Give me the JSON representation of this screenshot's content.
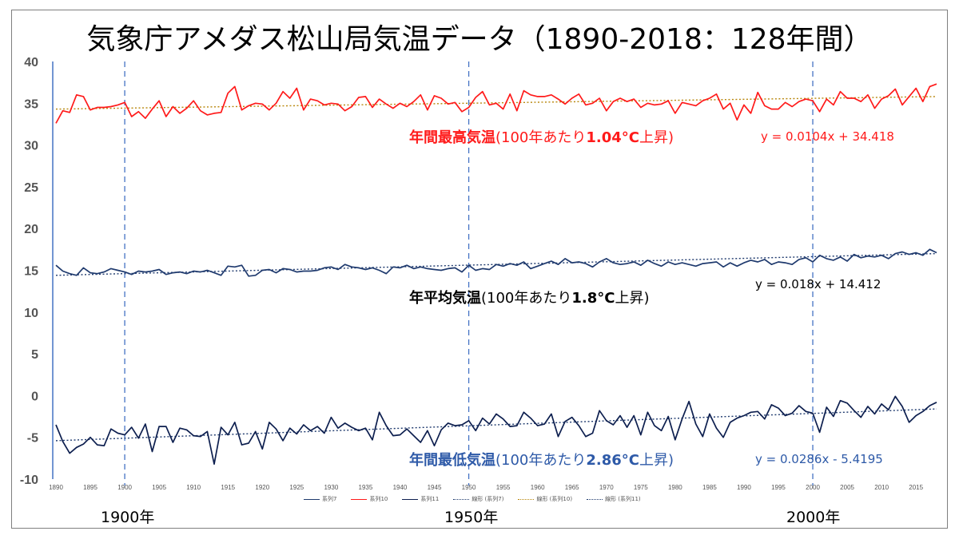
{
  "title": "気象庁アメダス松山局気温データ（1890-2018：128年間）",
  "annotations": {
    "max": {
      "prefix": "年間最高気温",
      "mid": "(100年あたり",
      "bold": "1.04°C",
      "suffix": "上昇)",
      "color": "#ff1a1a"
    },
    "avg": {
      "prefix": "年平均気温",
      "mid": "(100年あたり",
      "bold": "1.8°C",
      "suffix": "上昇)",
      "color": "#000000"
    },
    "min": {
      "prefix": "年間最低気温",
      "mid": "(100年あたり",
      "bold": "2.86°C",
      "suffix": "上昇)",
      "color": "#2e5aa8"
    }
  },
  "equations": {
    "max": "y = 0.0104x + 34.418",
    "avg": "y = 0.018x + 14.412",
    "min": "y = 0.0286x - 5.4195"
  },
  "era_labels": [
    "1900年",
    "1950年",
    "2000年"
  ],
  "legend": [
    {
      "label": "系列7",
      "color": "#1f3a6e",
      "style": "solid"
    },
    {
      "label": "系列10",
      "color": "#ff1a1a",
      "style": "solid"
    },
    {
      "label": "系列11",
      "color": "#0d1f4f",
      "style": "solid"
    },
    {
      "label": "線形 (系列7)",
      "color": "#1f3a6e",
      "style": "dotted"
    },
    {
      "label": "線形 (系列10)",
      "color": "#b8860b",
      "style": "dotted"
    },
    {
      "label": "線形 (系列11)",
      "color": "#1f3a6e",
      "style": "dotted"
    }
  ],
  "chart_data": {
    "type": "line",
    "x_start": 1890,
    "x_end": 2018,
    "ylim": [
      -10,
      40
    ],
    "y_ticks": [
      40,
      35,
      30,
      25,
      20,
      15,
      10,
      5,
      0,
      -5,
      -10
    ],
    "x_ticks": [
      1890,
      1895,
      1900,
      1905,
      1910,
      1915,
      1920,
      1925,
      1930,
      1935,
      1940,
      1945,
      1950,
      1955,
      1960,
      1965,
      1970,
      1975,
      1980,
      1985,
      1990,
      1995,
      2000,
      2005,
      2010,
      2015
    ],
    "vlines": [
      1900,
      1950,
      2000
    ],
    "series": [
      {
        "name": "系列10",
        "color": "#ff1a1a",
        "values": [
          32.6,
          34.1,
          33.9,
          36.0,
          35.8,
          34.2,
          34.5,
          34.5,
          34.6,
          34.8,
          35.1,
          33.4,
          34.0,
          33.2,
          34.3,
          35.3,
          33.4,
          34.6,
          33.8,
          34.4,
          35.3,
          34.1,
          33.6,
          33.8,
          33.9,
          36.2,
          37.0,
          34.2,
          34.7,
          35.0,
          34.9,
          34.2,
          35.0,
          36.4,
          35.6,
          36.8,
          34.2,
          35.5,
          35.3,
          34.8,
          35.0,
          34.9,
          34.1,
          34.6,
          35.7,
          35.8,
          34.5,
          35.5,
          34.9,
          34.4,
          35.0,
          34.6,
          35.2,
          36.0,
          34.2,
          35.9,
          35.6,
          34.9,
          35.1,
          34.0,
          34.5,
          35.7,
          36.4,
          34.8,
          35.0,
          34.3,
          36.1,
          34.1,
          36.5,
          36.0,
          35.8,
          35.8,
          36.0,
          35.5,
          34.9,
          35.6,
          36.1,
          34.8,
          35.0,
          35.6,
          34.1,
          35.2,
          35.6,
          35.2,
          35.5,
          34.5,
          35.0,
          34.8,
          34.9,
          35.3,
          33.8,
          35.1,
          34.9,
          34.7,
          35.3,
          35.6,
          36.1,
          34.3,
          35.0,
          33.0,
          34.8,
          33.8,
          36.3,
          34.7,
          34.3,
          34.3,
          35.1,
          34.6,
          35.2,
          35.5,
          35.3,
          34.0,
          35.5,
          34.8,
          36.4,
          35.6,
          35.6,
          35.2,
          36.0,
          34.4,
          35.5,
          35.9,
          36.7,
          34.8,
          35.8,
          36.8,
          35.2,
          37.0,
          37.3
        ]
      },
      {
        "name": "系列7",
        "color": "#1f3a6e",
        "values": [
          15.6,
          14.9,
          14.6,
          14.4,
          15.3,
          14.7,
          14.6,
          14.8,
          15.2,
          15.0,
          14.8,
          14.5,
          14.9,
          14.8,
          14.9,
          15.1,
          14.5,
          14.7,
          14.8,
          14.6,
          14.9,
          14.8,
          15.0,
          14.7,
          14.4,
          15.5,
          15.4,
          15.6,
          14.3,
          14.4,
          15.0,
          15.1,
          14.7,
          15.2,
          15.1,
          14.8,
          14.9,
          14.9,
          15.0,
          15.3,
          15.4,
          15.1,
          15.7,
          15.4,
          15.3,
          15.1,
          15.3,
          15.0,
          14.6,
          15.4,
          15.3,
          15.6,
          15.2,
          15.4,
          15.2,
          15.1,
          15.0,
          15.2,
          15.3,
          14.8,
          15.6,
          15.0,
          15.2,
          15.1,
          15.7,
          15.5,
          15.8,
          15.6,
          16.0,
          15.2,
          15.5,
          15.8,
          16.1,
          15.7,
          16.4,
          15.9,
          16.0,
          15.8,
          15.4,
          16.0,
          16.4,
          15.9,
          15.7,
          15.8,
          16.0,
          15.6,
          16.2,
          15.8,
          15.5,
          16.0,
          15.7,
          15.9,
          15.7,
          15.5,
          15.8,
          15.9,
          16.0,
          15.4,
          15.9,
          15.5,
          15.9,
          16.2,
          16.0,
          16.3,
          15.7,
          16.0,
          15.9,
          15.7,
          16.3,
          16.5,
          16.0,
          16.8,
          16.4,
          16.2,
          16.6,
          16.1,
          16.9,
          16.5,
          16.7,
          16.6,
          16.8,
          16.4,
          17.0,
          17.2,
          16.9,
          17.1,
          16.8,
          17.5,
          17.1
        ]
      },
      {
        "name": "系列11",
        "color": "#0d1f4f",
        "values": [
          -3.5,
          -5.5,
          -6.9,
          -6.2,
          -5.8,
          -5.0,
          -5.9,
          -6.0,
          -4.0,
          -4.5,
          -4.7,
          -3.8,
          -5.1,
          -3.4,
          -6.7,
          -3.7,
          -3.7,
          -5.6,
          -3.9,
          -4.1,
          -4.8,
          -4.9,
          -4.3,
          -8.2,
          -3.8,
          -4.7,
          -3.2,
          -5.9,
          -5.7,
          -4.3,
          -6.4,
          -3.2,
          -4.0,
          -5.4,
          -3.9,
          -4.6,
          -3.5,
          -4.2,
          -3.7,
          -4.5,
          -2.6,
          -3.9,
          -3.3,
          -3.8,
          -4.2,
          -3.9,
          -5.3,
          -2.0,
          -3.6,
          -4.8,
          -4.7,
          -4.0,
          -4.8,
          -5.6,
          -4.2,
          -6.0,
          -4.1,
          -3.3,
          -3.6,
          -3.5,
          -3.0,
          -4.2,
          -2.7,
          -3.4,
          -2.2,
          -2.8,
          -3.7,
          -3.6,
          -2.0,
          -2.7,
          -3.6,
          -3.4,
          -2.2,
          -4.9,
          -3.1,
          -2.6,
          -3.6,
          -4.9,
          -4.5,
          -1.8,
          -3.0,
          -3.5,
          -2.4,
          -3.8,
          -2.4,
          -4.7,
          -2.0,
          -3.6,
          -4.2,
          -2.5,
          -5.3,
          -2.8,
          -0.7,
          -3.4,
          -4.9,
          -2.2,
          -3.9,
          -5.0,
          -3.2,
          -2.7,
          -2.4,
          -2.0,
          -1.9,
          -2.8,
          -1.1,
          -1.5,
          -2.4,
          -2.1,
          -1.2,
          -1.9,
          -2.1,
          -4.4,
          -1.4,
          -2.5,
          -0.6,
          -0.9,
          -1.8,
          -2.6,
          -1.3,
          -2.2,
          -1.0,
          -1.7,
          -0.1,
          -1.3,
          -3.2,
          -2.4,
          -1.9,
          -1.2,
          -0.8
        ]
      }
    ],
    "trends": [
      {
        "series": "系列10",
        "color": "#b8860b",
        "start": 34.3,
        "end": 35.8
      },
      {
        "series": "系列7",
        "color": "#1f3a6e",
        "start": 14.4,
        "end": 17.0
      },
      {
        "series": "系列11",
        "color": "#1f3a6e",
        "start": -5.4,
        "end": -1.6
      }
    ]
  }
}
